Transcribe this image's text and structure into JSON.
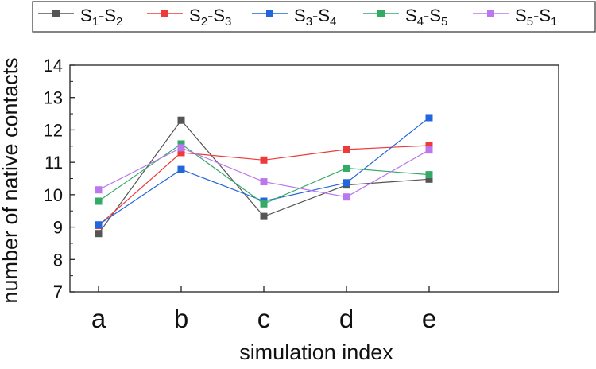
{
  "chart_data": {
    "type": "line",
    "title": "",
    "xlabel": "simulation index",
    "ylabel": "number of native contacts",
    "categories": [
      "a",
      "b",
      "c",
      "d",
      "e"
    ],
    "ylim": [
      7,
      14
    ],
    "yticks": [
      "7",
      "8",
      "9",
      "10",
      "11",
      "12",
      "13",
      "14"
    ],
    "grid": false,
    "legend_position": "top",
    "series": [
      {
        "name": "S1-S2",
        "label_main": [
          "S",
          "-S",
          ""
        ],
        "label_sub": [
          "1",
          "2"
        ],
        "color": "#555555",
        "values": [
          8.8,
          12.3,
          9.33,
          10.3,
          10.48
        ]
      },
      {
        "name": "S2-S3",
        "label_main": [
          "S",
          "-S",
          ""
        ],
        "label_sub": [
          "2",
          "3"
        ],
        "color": "#ee3a3a",
        "values": [
          9.05,
          11.3,
          11.07,
          11.4,
          11.52
        ]
      },
      {
        "name": "S3-S4",
        "label_main": [
          "S",
          "-S",
          ""
        ],
        "label_sub": [
          "3",
          "4"
        ],
        "color": "#2266dd",
        "values": [
          9.07,
          10.78,
          9.8,
          10.37,
          12.38
        ]
      },
      {
        "name": "S4-S5",
        "label_main": [
          "S",
          "-S",
          ""
        ],
        "label_sub": [
          "4",
          "5"
        ],
        "color": "#33aa66",
        "values": [
          9.8,
          11.57,
          9.72,
          10.82,
          10.62
        ]
      },
      {
        "name": "S5-S1",
        "label_main": [
          "S",
          "-S",
          ""
        ],
        "label_sub": [
          "5",
          "1"
        ],
        "color": "#bb77ee",
        "values": [
          10.15,
          11.45,
          10.4,
          9.93,
          11.38
        ]
      }
    ]
  }
}
